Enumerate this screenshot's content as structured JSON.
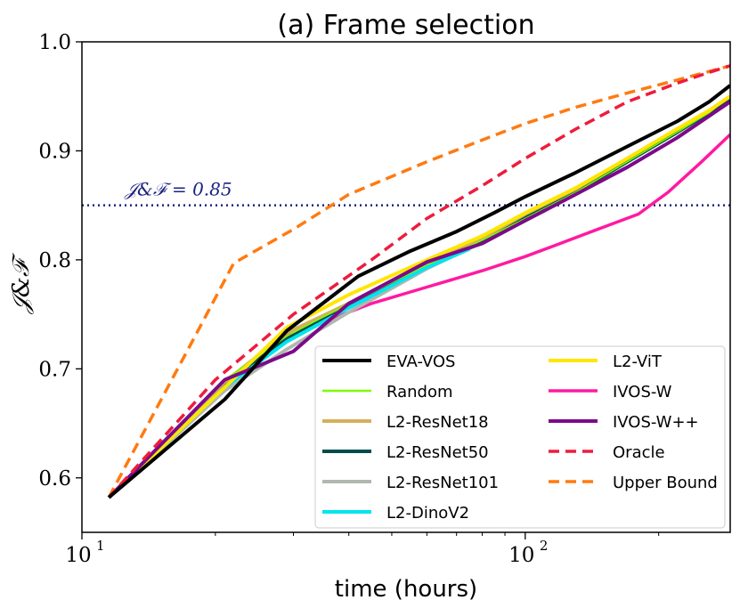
{
  "chart_data": {
    "type": "line",
    "title": "(a) Frame selection",
    "xlabel": "time (hours)",
    "ylabel": "𝒥&ℱ",
    "xscale": "log",
    "xlim": [
      10,
      290
    ],
    "ylim": [
      0.55,
      1.0
    ],
    "x_ticks": [
      {
        "value": 10,
        "base": "10",
        "exp": "1"
      },
      {
        "value": 100,
        "base": "10",
        "exp": "2"
      }
    ],
    "y_ticks": [
      {
        "value": 0.6,
        "label": "0.6"
      },
      {
        "value": 0.7,
        "label": "0.7"
      },
      {
        "value": 0.8,
        "label": "0.8"
      },
      {
        "value": 0.9,
        "label": "0.9"
      },
      {
        "value": 1.0,
        "label": "1.0"
      }
    ],
    "reference_line": {
      "y": 0.85,
      "label": "𝒥&ℱ = 0.85",
      "color": "#1a237e",
      "style": "dotted"
    },
    "legend_position": "bottom-right",
    "series": [
      {
        "name": "EVA-VOS",
        "color": "#000000",
        "dash": "solid",
        "width": 4,
        "x": [
          11.5,
          21,
          29,
          42,
          55,
          70,
          85,
          100,
          130,
          170,
          220,
          260,
          290
        ],
        "y": [
          0.582,
          0.672,
          0.735,
          0.785,
          0.808,
          0.826,
          0.843,
          0.858,
          0.88,
          0.904,
          0.927,
          0.945,
          0.96
        ]
      },
      {
        "name": "Random",
        "color": "#7cfc00",
        "dash": "solid",
        "width": 1.5,
        "x": [
          11.5,
          21,
          29,
          40,
          60,
          80,
          100,
          130,
          170,
          220,
          260,
          290
        ],
        "y": [
          0.582,
          0.69,
          0.73,
          0.76,
          0.795,
          0.818,
          0.838,
          0.862,
          0.89,
          0.917,
          0.935,
          0.95
        ]
      },
      {
        "name": "L2-ResNet18",
        "color": "#d4b05a",
        "dash": "solid",
        "width": 4,
        "x": [
          11.5,
          21,
          29,
          40,
          60,
          80,
          100,
          130,
          170,
          220,
          260,
          290
        ],
        "y": [
          0.582,
          0.688,
          0.733,
          0.76,
          0.797,
          0.82,
          0.842,
          0.865,
          0.893,
          0.92,
          0.937,
          0.95
        ]
      },
      {
        "name": "L2-ResNet50",
        "color": "#004d4d",
        "dash": "solid",
        "width": 4,
        "x": [
          11.5,
          21,
          29,
          40,
          60,
          80,
          100,
          130,
          170,
          220,
          260,
          290
        ],
        "y": [
          0.582,
          0.686,
          0.728,
          0.757,
          0.795,
          0.817,
          0.84,
          0.862,
          0.89,
          0.917,
          0.935,
          0.948
        ]
      },
      {
        "name": "L2-ResNet101",
        "color": "#b0b8b0",
        "dash": "solid",
        "width": 4,
        "x": [
          11.5,
          21,
          29,
          40,
          60,
          80,
          100,
          130,
          170,
          220,
          260,
          290
        ],
        "y": [
          0.582,
          0.68,
          0.718,
          0.752,
          0.792,
          0.816,
          0.838,
          0.862,
          0.89,
          0.917,
          0.935,
          0.948
        ]
      },
      {
        "name": "L2-DinoV2",
        "color": "#00e5ee",
        "dash": "solid",
        "width": 4,
        "x": [
          11.5,
          21,
          29,
          40,
          60,
          75
        ],
        "y": [
          0.582,
          0.683,
          0.725,
          0.756,
          0.793,
          0.81
        ]
      },
      {
        "name": "L2-ViT",
        "color": "#ffe600",
        "dash": "solid",
        "width": 4,
        "x": [
          11.5,
          21,
          29,
          40,
          60,
          80,
          100,
          130,
          170,
          220,
          260,
          290
        ],
        "y": [
          0.582,
          0.683,
          0.738,
          0.768,
          0.8,
          0.822,
          0.843,
          0.866,
          0.893,
          0.92,
          0.937,
          0.95
        ]
      },
      {
        "name": "IVOS-W",
        "color": "#ff1aa0",
        "dash": "solid",
        "width": 3.5,
        "x": [
          11.5,
          21,
          29,
          45,
          60,
          80,
          100,
          120,
          150,
          180,
          210,
          250,
          290
        ],
        "y": [
          0.582,
          0.686,
          0.73,
          0.76,
          0.775,
          0.79,
          0.803,
          0.815,
          0.83,
          0.842,
          0.862,
          0.89,
          0.915
        ]
      },
      {
        "name": "IVOS-W++",
        "color": "#7b0a8a",
        "dash": "solid",
        "width": 4,
        "x": [
          11.5,
          21,
          30,
          40,
          60,
          80,
          100,
          130,
          170,
          220,
          260,
          290
        ],
        "y": [
          0.582,
          0.69,
          0.716,
          0.76,
          0.798,
          0.815,
          0.836,
          0.86,
          0.885,
          0.912,
          0.932,
          0.945
        ]
      },
      {
        "name": "Oracle",
        "color": "#ee1c3c",
        "dash": "dashed",
        "width": 3.5,
        "x": [
          11.5,
          20,
          30,
          45,
          60,
          80,
          100,
          130,
          170,
          220,
          260,
          290
        ],
        "y": [
          0.582,
          0.69,
          0.75,
          0.8,
          0.838,
          0.868,
          0.893,
          0.92,
          0.945,
          0.962,
          0.972,
          0.978
        ]
      },
      {
        "name": "Upper Bound",
        "color": "#ff7a10",
        "dash": "dashed",
        "width": 3.5,
        "x": [
          11.5,
          18,
          22,
          30,
          40,
          60,
          80,
          100,
          130,
          170,
          220,
          290
        ],
        "y": [
          0.582,
          0.73,
          0.797,
          0.828,
          0.86,
          0.89,
          0.91,
          0.925,
          0.94,
          0.953,
          0.965,
          0.978
        ]
      }
    ]
  }
}
